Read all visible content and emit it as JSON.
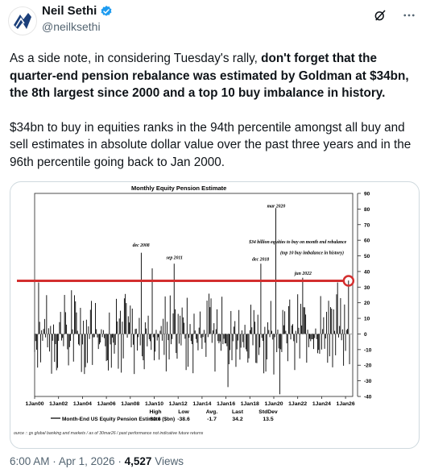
{
  "author": {
    "name": "Neil Sethi",
    "handle": "@neilksethi",
    "verified_color": "#1d9bf0"
  },
  "post": {
    "p1_before": "As a side note, in considering Tuesday's rally, ",
    "p1_bold": "don't forget that the quarter-end pension rebalance was estimated by Goldman at $34bn, the 8th largest since 2000 and a top 10 buy imbalance in history.",
    "p2": "$34bn to buy in equities ranks in the 94th percentile amongst all buy and sell estimates in absolute dollar value over the past three years and in the 96th percentile going back to Jan 2000."
  },
  "meta": {
    "time": "6:00 AM",
    "date": "Apr 1, 2026",
    "views": "4,527",
    "views_label": "Views",
    "sep": "·"
  },
  "icons": {
    "grok": "grok-icon",
    "more": "more-icon",
    "verified": "verified-badge-icon"
  },
  "chart_data": {
    "type": "bar",
    "title": "Monthly Equity Pension Estimate",
    "ylim": [
      -40,
      90
    ],
    "yticks": [
      -40,
      -30,
      -20,
      -10,
      0,
      10,
      20,
      30,
      40,
      50,
      60,
      70,
      80,
      90
    ],
    "xticks": [
      "1Jan00",
      "1Jan02",
      "1Jan04",
      "1Jan06",
      "1Jan08",
      "1Jan10",
      "1Jan12",
      "1Jan14",
      "1Jan16",
      "1Jan18",
      "1Jan20",
      "1Jan22",
      "1Jan24",
      "1Jan26"
    ],
    "series_color": "#000000",
    "threshold_value": 34,
    "threshold_color": "#d32f2f",
    "annotations": [
      {
        "text": "dec 2008",
        "x": 2008.9,
        "y": 56
      },
      {
        "text": "sep 2011",
        "x": 2011.7,
        "y": 48
      },
      {
        "text": "dec 2018",
        "x": 2018.9,
        "y": 47
      },
      {
        "text": "mar 2020",
        "x": 2020.2,
        "y": 81
      },
      {
        "text": "jun 2022",
        "x": 2022.45,
        "y": 38
      },
      {
        "text": "$34 billion equities to buy on month end rebalance",
        "x": 2022.0,
        "y": 58
      },
      {
        "text": "(top 10 buy imbalance in history)",
        "x": 2023.2,
        "y": 51
      }
    ],
    "stats": {
      "series_label": "Month-End US Equity Pension Estimate ($bn)",
      "headers": [
        "High",
        "Low",
        "Avg.",
        "Last",
        "StdDev"
      ],
      "values": [
        "80.6",
        "-38.6",
        "-1.7",
        "34.2",
        "13.5"
      ]
    },
    "source": "ource :: gs global banking and markets / as of 30mar26 / past performance not indicative future returns",
    "spikes": [
      {
        "x": 2000.3,
        "value": 33
      },
      {
        "x": 2002.5,
        "value": 25
      },
      {
        "x": 2003.1,
        "value": 28
      },
      {
        "x": 2008.9,
        "value": 52
      },
      {
        "x": 2009.8,
        "value": 42
      },
      {
        "x": 2011.7,
        "value": 45
      },
      {
        "x": 2016.2,
        "value": -34
      },
      {
        "x": 2018.9,
        "value": 45
      },
      {
        "x": 2020.2,
        "value": 80.6
      },
      {
        "x": 2020.5,
        "value": -38.6
      },
      {
        "x": 2022.45,
        "value": 36
      },
      {
        "x": 2025.3,
        "value": 33
      },
      {
        "x": 2026.25,
        "value": 34.2
      }
    ]
  }
}
